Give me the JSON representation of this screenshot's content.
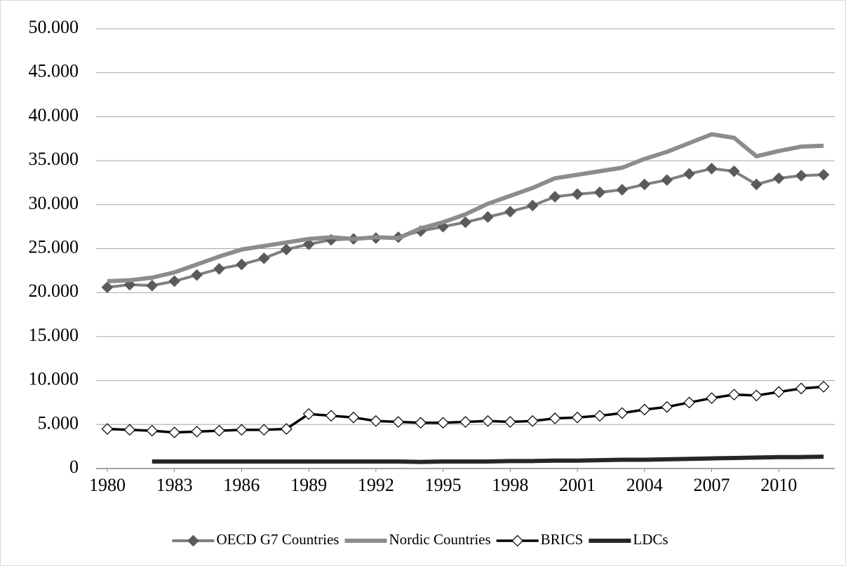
{
  "chart_data": {
    "type": "line",
    "x": [
      1980,
      1981,
      1982,
      1983,
      1984,
      1985,
      1986,
      1987,
      1988,
      1989,
      1990,
      1991,
      1992,
      1993,
      1994,
      1995,
      1996,
      1997,
      1998,
      1999,
      2000,
      2001,
      2002,
      2003,
      2004,
      2005,
      2006,
      2007,
      2008,
      2009,
      2010,
      2011,
      2012
    ],
    "xlim": [
      1979.5,
      2012.5
    ],
    "xticks": [
      1980,
      1983,
      1986,
      1989,
      1992,
      1995,
      1998,
      2001,
      2004,
      2007,
      2010
    ],
    "ylim": [
      0,
      50000
    ],
    "yticks": [
      0,
      {
        "value": 5000,
        "label": "5.000"
      },
      {
        "value": 10000,
        "label": "10.000"
      },
      {
        "value": 15000,
        "label": "15.000"
      },
      {
        "value": 20000,
        "label": "20.000"
      },
      {
        "value": 25000,
        "label": "25.000"
      },
      {
        "value": 30000,
        "label": "30.000"
      },
      {
        "value": 35000,
        "label": "35.000"
      },
      {
        "value": 40000,
        "label": "40.000"
      },
      {
        "value": 45000,
        "label": "45.000"
      },
      {
        "value": 50000,
        "label": "50.000"
      }
    ],
    "grid": true,
    "legend": "bottom",
    "series": [
      {
        "name": "OECD G7 Countries",
        "color": "#7f7f7f",
        "line_width": 4,
        "marker": "diamond",
        "marker_color": "#5a5a5a",
        "marker_fill": "#5a5a5a",
        "values": [
          20600,
          20900,
          20800,
          21300,
          22000,
          22700,
          23200,
          23900,
          24900,
          25500,
          26000,
          26100,
          26200,
          26300,
          27000,
          27500,
          28000,
          28600,
          29200,
          29900,
          30900,
          31200,
          31400,
          31700,
          32300,
          32800,
          33500,
          34100,
          33800,
          32300,
          33000,
          33300,
          33400
        ]
      },
      {
        "name": "Nordic Countries",
        "color": "#8c8c8c",
        "line_width": 6,
        "marker": "none",
        "values": [
          21300,
          21400,
          21700,
          22300,
          23200,
          24100,
          24900,
          25300,
          25700,
          26100,
          26300,
          26100,
          26300,
          26200,
          27300,
          28000,
          28900,
          30100,
          31000,
          31900,
          33000,
          33400,
          33800,
          34200,
          35200,
          36000,
          37000,
          38000,
          37600,
          35500,
          36100,
          36600,
          36700
        ]
      },
      {
        "name": "BRICS",
        "color": "#000000",
        "line_width": 3.5,
        "marker": "diamond",
        "marker_color": "#000000",
        "marker_fill": "#ffffff",
        "values": [
          4500,
          4400,
          4300,
          4100,
          4200,
          4300,
          4400,
          4400,
          4500,
          6200,
          6000,
          5800,
          5400,
          5300,
          5200,
          5200,
          5300,
          5400,
          5300,
          5400,
          5700,
          5800,
          6000,
          6300,
          6700,
          7000,
          7500,
          8000,
          8400,
          8300,
          8700,
          9100,
          9300
        ]
      },
      {
        "name": "LDCs",
        "color": "#262626",
        "line_width": 6,
        "marker": "none",
        "values": [
          null,
          null,
          800,
          800,
          800,
          800,
          800,
          800,
          800,
          800,
          800,
          800,
          800,
          800,
          750,
          800,
          800,
          800,
          850,
          850,
          900,
          900,
          950,
          1000,
          1000,
          1050,
          1100,
          1150,
          1200,
          1250,
          1300,
          1300,
          1350
        ]
      }
    ]
  }
}
